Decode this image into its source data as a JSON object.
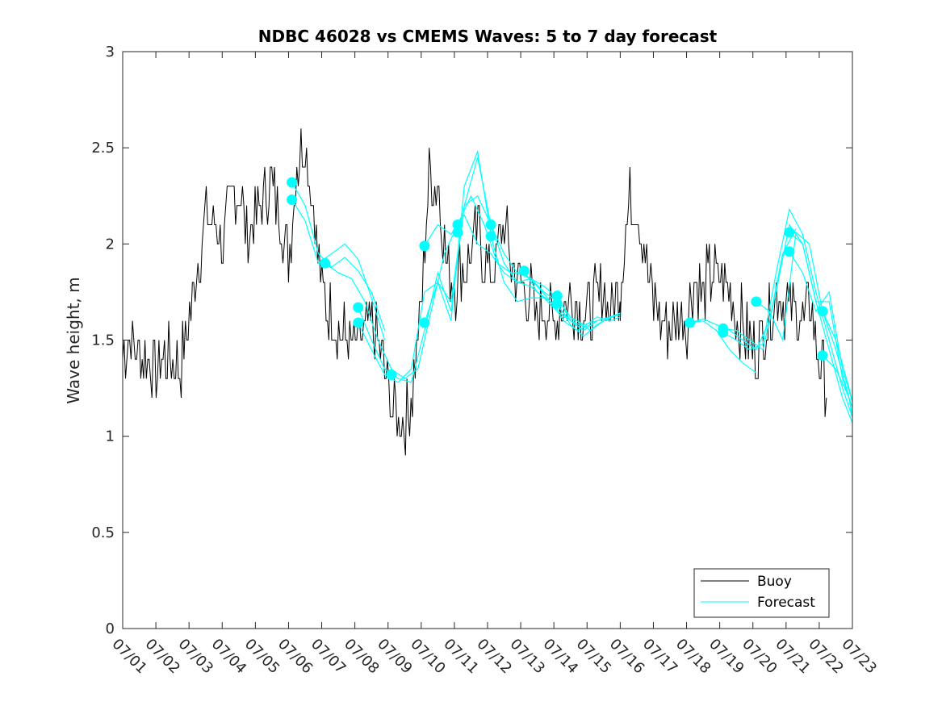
{
  "chart_data": {
    "type": "line",
    "title": "NDBC 46028 vs CMEMS Waves: 5 to 7 day forecast",
    "xlabel": "",
    "ylabel": "Wave height, m",
    "xlim": [
      "07/01",
      "07/23"
    ],
    "ylim": [
      0,
      3
    ],
    "grid": false,
    "legend_position": "bottom-right",
    "x_tick_labels": [
      "07/01",
      "07/02",
      "07/03",
      "07/04",
      "07/05",
      "07/06",
      "07/07",
      "07/08",
      "07/09",
      "07/10",
      "07/11",
      "07/12",
      "07/13",
      "07/14",
      "07/15",
      "07/16",
      "07/17",
      "07/18",
      "07/19",
      "07/20",
      "07/21",
      "07/22",
      "07/23"
    ],
    "y_tick_labels": [
      "0",
      "0.5",
      "1",
      "1.5",
      "2",
      "2.5",
      "3"
    ],
    "y_ticks": [
      0,
      0.5,
      1,
      1.5,
      2,
      2.5,
      3
    ],
    "colors": {
      "buoy": "#000000",
      "forecast": "#00ffff"
    },
    "series": [
      {
        "name": "Buoy",
        "x": [
          1.0,
          1.25,
          1.5,
          1.75,
          2.0,
          2.25,
          2.5,
          2.75,
          3.0,
          3.25,
          3.5,
          3.75,
          4.0,
          4.25,
          4.5,
          4.75,
          5.0,
          5.25,
          5.5,
          5.75,
          6.0,
          6.25,
          6.5,
          6.75,
          7.0,
          7.25,
          7.5,
          7.75,
          8.0,
          8.25,
          8.5,
          8.75,
          9.0,
          9.25,
          9.5,
          9.75,
          10.0,
          10.25,
          10.5,
          10.75,
          11.0,
          11.25,
          11.5,
          11.75,
          12.0,
          12.25,
          12.5,
          12.75,
          13.0,
          13.25,
          13.5,
          13.75,
          14.0,
          14.25,
          14.5,
          14.75,
          15.0,
          15.25,
          15.5,
          15.75,
          16.0,
          16.25,
          16.5,
          16.75,
          17.0,
          17.25,
          17.5,
          17.75,
          18.0,
          18.25,
          18.5,
          18.75,
          19.0,
          19.25,
          19.5,
          19.75,
          20.0,
          20.25,
          20.5,
          20.75,
          21.0,
          21.25,
          21.5,
          21.75,
          22.0,
          22.25
        ],
        "values": [
          1.45,
          1.5,
          1.4,
          1.4,
          1.35,
          1.4,
          1.4,
          1.35,
          1.6,
          1.9,
          2.15,
          2.1,
          2.0,
          2.2,
          2.3,
          2.05,
          2.1,
          2.25,
          2.3,
          2.15,
          1.9,
          2.4,
          2.55,
          2.2,
          1.75,
          1.65,
          1.55,
          1.5,
          1.45,
          1.55,
          1.55,
          1.45,
          1.25,
          1.1,
          1.05,
          1.25,
          1.7,
          2.4,
          2.3,
          1.95,
          1.8,
          1.85,
          1.95,
          2.05,
          1.85,
          1.9,
          2.1,
          1.85,
          1.8,
          1.75,
          1.6,
          1.65,
          1.6,
          1.7,
          1.7,
          1.7,
          1.6,
          1.7,
          1.75,
          1.65,
          1.75,
          2.2,
          2.2,
          1.95,
          1.7,
          1.6,
          1.55,
          1.6,
          1.6,
          1.8,
          1.75,
          1.85,
          1.8,
          1.8,
          1.65,
          1.55,
          1.45,
          1.5,
          1.6,
          1.75,
          1.7,
          1.65,
          1.6,
          1.7,
          1.35,
          1.3
        ]
      },
      {
        "name": "Forecast",
        "runs": [
          {
            "x": [
              6.1,
              6.5,
              6.9,
              7.3,
              7.7,
              8.1,
              8.5,
              8.9
            ],
            "values": [
              2.32,
              2.2,
              1.95,
              1.88,
              1.93,
              1.86,
              1.75,
              1.55
            ]
          },
          {
            "x": [
              6.1,
              6.5,
              6.9,
              7.3,
              7.7,
              8.1,
              8.5,
              8.9
            ],
            "values": [
              2.23,
              2.12,
              1.9,
              1.95,
              2.0,
              1.92,
              1.72,
              1.5
            ]
          },
          {
            "x": [
              7.1,
              7.5,
              7.9,
              8.3,
              8.7,
              9.1,
              9.5,
              9.9,
              10.3,
              10.7,
              11.1
            ],
            "values": [
              1.9,
              1.85,
              1.82,
              1.7,
              1.5,
              1.35,
              1.3,
              1.35,
              1.65,
              1.95,
              2.1
            ]
          },
          {
            "x": [
              8.1,
              8.5,
              8.9,
              9.3,
              9.7,
              10.1,
              10.5,
              10.9,
              11.3,
              11.7,
              12.1
            ],
            "values": [
              1.67,
              1.5,
              1.35,
              1.3,
              1.28,
              1.55,
              1.85,
              1.65,
              2.2,
              2.45,
              2.1
            ]
          },
          {
            "x": [
              8.1,
              8.5,
              8.9,
              9.3,
              9.7,
              10.1,
              10.5,
              10.9,
              11.3,
              11.7,
              12.1
            ],
            "values": [
              1.59,
              1.45,
              1.32,
              1.28,
              1.35,
              1.75,
              1.8,
              1.6,
              2.3,
              2.48,
              2.05
            ]
          },
          {
            "x": [
              10.1,
              10.5,
              10.9,
              11.3,
              11.7,
              12.1,
              12.5,
              12.9,
              13.3,
              13.7,
              14.1
            ],
            "values": [
              1.99,
              2.1,
              2.05,
              2.15,
              2.0,
              1.95,
              1.85,
              1.8,
              1.78,
              1.72,
              1.65
            ]
          },
          {
            "x": [
              10.1,
              10.5,
              10.9,
              11.3,
              11.7,
              12.1,
              12.5,
              12.9,
              13.3,
              13.7,
              14.1
            ],
            "values": [
              1.59,
              1.8,
              1.7,
              2.2,
              2.25,
              2.1,
              1.9,
              1.8,
              1.82,
              1.75,
              1.7
            ]
          },
          {
            "x": [
              11.1,
              11.5,
              11.9,
              12.3,
              12.7,
              13.1,
              13.5,
              13.9,
              14.3,
              14.7,
              15.1
            ],
            "values": [
              2.1,
              2.25,
              2.1,
              1.9,
              1.85,
              1.85,
              1.78,
              1.7,
              1.6,
              1.55,
              1.58
            ]
          },
          {
            "x": [
              12.1,
              12.5,
              12.9,
              13.3,
              13.7,
              14.1,
              14.5,
              14.9,
              15.3,
              15.7,
              16.0
            ],
            "values": [
              2.1,
              1.95,
              1.85,
              1.82,
              1.78,
              1.72,
              1.62,
              1.58,
              1.6,
              1.62,
              1.64
            ]
          },
          {
            "x": [
              12.1,
              12.5,
              12.9,
              13.3,
              13.7,
              14.1,
              14.5,
              14.9,
              15.3,
              15.7,
              16.0
            ],
            "values": [
              2.04,
              1.8,
              1.7,
              1.72,
              1.72,
              1.68,
              1.6,
              1.57,
              1.62,
              1.6,
              1.62
            ]
          },
          {
            "x": [
              13.1,
              13.5,
              13.9,
              14.3,
              14.7,
              15.1,
              15.5,
              15.9
            ],
            "values": [
              1.86,
              1.75,
              1.7,
              1.62,
              1.6,
              1.55,
              1.6,
              1.63
            ]
          },
          {
            "x": [
              14.1,
              14.5,
              14.9,
              15.3,
              15.7,
              16.0
            ],
            "values": [
              1.73,
              1.6,
              1.55,
              1.6,
              1.62,
              1.64
            ]
          },
          {
            "x": [
              14.1,
              14.5,
              14.9,
              15.3,
              15.7,
              16.0
            ],
            "values": [
              1.69,
              1.58,
              1.52,
              1.58,
              1.62,
              1.63
            ]
          },
          {
            "x": [
              18.1,
              18.5,
              18.9,
              19.3,
              19.7,
              20.1
            ],
            "values": [
              1.59,
              1.6,
              1.55,
              1.45,
              1.38,
              1.33
            ]
          },
          {
            "x": [
              18.1,
              18.5,
              18.9,
              19.3,
              19.7,
              20.1,
              20.5,
              20.9,
              21.3
            ],
            "values": [
              1.59,
              1.61,
              1.58,
              1.55,
              1.5,
              1.45,
              1.6,
              1.95,
              2.08
            ]
          },
          {
            "x": [
              19.1,
              19.5,
              19.9,
              20.3,
              20.7,
              21.1,
              21.5,
              21.9,
              22.3,
              22.7,
              23.0
            ],
            "values": [
              1.56,
              1.55,
              1.5,
              1.45,
              1.75,
              2.1,
              2.0,
              1.7,
              1.45,
              1.2,
              1.07
            ]
          },
          {
            "x": [
              19.1,
              19.5,
              19.9,
              20.3,
              20.7,
              21.1,
              21.5,
              21.9,
              22.3,
              22.7,
              23.0
            ],
            "values": [
              1.54,
              1.5,
              1.45,
              1.48,
              1.85,
              2.18,
              2.05,
              1.75,
              1.5,
              1.25,
              1.1
            ]
          },
          {
            "x": [
              20.1,
              20.5,
              20.9,
              21.3,
              21.7,
              22.1,
              22.5,
              22.9,
              23.0
            ],
            "values": [
              1.7,
              1.65,
              1.5,
              2.06,
              2.0,
              1.65,
              1.45,
              1.2,
              1.1
            ]
          },
          {
            "x": [
              21.1,
              21.5,
              21.9,
              22.3,
              22.7,
              23.0
            ],
            "values": [
              2.06,
              2.0,
              1.7,
              1.7,
              1.3,
              1.15
            ]
          },
          {
            "x": [
              21.1,
              21.5,
              21.9,
              22.3,
              22.7,
              23.0
            ],
            "values": [
              1.96,
              1.85,
              1.65,
              1.75,
              1.35,
              1.18
            ]
          },
          {
            "x": [
              22.1,
              22.5,
              22.9,
              23.0
            ],
            "values": [
              1.65,
              1.5,
              1.25,
              1.18
            ]
          },
          {
            "x": [
              22.1,
              22.5,
              22.9,
              23.0
            ],
            "values": [
              1.42,
              1.35,
              1.2,
              1.1
            ]
          }
        ],
        "markers": {
          "x": [
            6.1,
            6.1,
            7.1,
            8.1,
            8.1,
            9.1,
            10.1,
            10.1,
            11.1,
            11.1,
            12.1,
            12.1,
            13.1,
            14.1,
            14.1,
            18.1,
            19.1,
            19.1,
            20.1,
            21.1,
            21.1,
            22.1,
            22.1
          ],
          "values": [
            2.32,
            2.23,
            1.9,
            1.67,
            1.59,
            1.32,
            1.99,
            1.59,
            2.1,
            2.06,
            2.1,
            2.04,
            1.86,
            1.73,
            1.69,
            1.59,
            1.56,
            1.54,
            1.7,
            2.06,
            1.96,
            1.65,
            1.42
          ]
        }
      }
    ]
  }
}
